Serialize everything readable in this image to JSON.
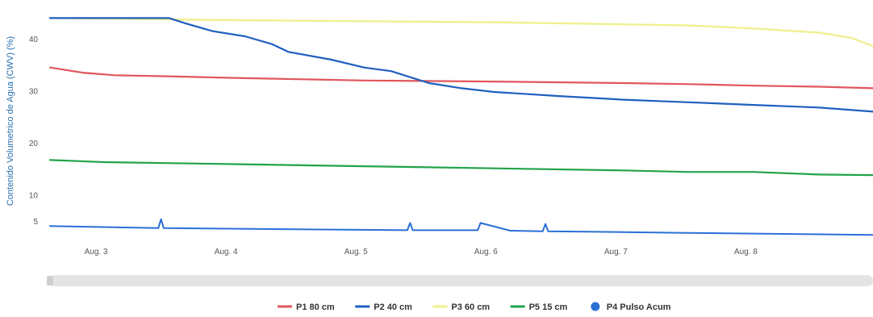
{
  "chart_data": {
    "type": "line",
    "title": "",
    "xlabel": "",
    "ylabel": "Contenido Volumetrico de Agua (CWV) (%)",
    "xlim": [
      "2023-08-02T14:00",
      "2023-08-08T22:00"
    ],
    "ylim": [
      0,
      45
    ],
    "y_ticks": [
      5,
      10,
      20,
      30,
      40
    ],
    "y_tick_labels": [
      "5",
      "10",
      "20",
      "30",
      "40"
    ],
    "x_ticks": [
      "2023-08-03T00:00",
      "2023-08-04T00:00",
      "2023-08-05T00:00",
      "2023-08-06T00:00",
      "2023-08-07T00:00",
      "2023-08-08T00:00"
    ],
    "x_tick_labels": [
      "Aug. 3",
      "Aug. 4",
      "Aug. 5",
      "Aug. 6",
      "Aug. 7",
      "Aug. 8"
    ],
    "grid": false,
    "legend_position": "bottom",
    "series": [
      {
        "name": "P1 80 cm",
        "color": "#e0565b",
        "x": [
          "2023-08-02T14:00",
          "2023-08-02T20:00",
          "2023-08-03T02:00",
          "2023-08-03T12:00",
          "2023-08-04T00:00",
          "2023-08-05T00:00",
          "2023-08-06T00:00",
          "2023-08-07T00:00",
          "2023-08-07T12:00",
          "2023-08-08T00:00",
          "2023-08-08T12:00",
          "2023-08-08T22:00"
        ],
        "values": [
          34.5,
          33.5,
          33.0,
          32.8,
          32.5,
          32.0,
          31.8,
          31.5,
          31.3,
          31.0,
          30.8,
          30.5
        ]
      },
      {
        "name": "P2 40 cm",
        "color": "#1f5fbf",
        "x": [
          "2023-08-02T14:00",
          "2023-08-03T12:00",
          "2023-08-03T15:00",
          "2023-08-03T20:00",
          "2023-08-04T02:00",
          "2023-08-04T07:00",
          "2023-08-04T10:00",
          "2023-08-04T18:00",
          "2023-08-05T00:00",
          "2023-08-05T05:00",
          "2023-08-05T08:00",
          "2023-08-05T12:00",
          "2023-08-05T18:00",
          "2023-08-06T00:00",
          "2023-08-06T12:00",
          "2023-08-07T00:00",
          "2023-08-07T12:00",
          "2023-08-08T00:00",
          "2023-08-08T12:00",
          "2023-08-08T22:00"
        ],
        "values": [
          44.0,
          44.0,
          43.0,
          41.5,
          40.5,
          39.0,
          37.5,
          36.0,
          34.5,
          33.8,
          32.8,
          31.5,
          30.5,
          29.8,
          29.0,
          28.3,
          27.8,
          27.3,
          26.8,
          26.0
        ]
      },
      {
        "name": "P3 60 cm",
        "color": "#eef08a",
        "x": [
          "2023-08-02T14:00",
          "2023-08-04T00:00",
          "2023-08-05T00:00",
          "2023-08-06T00:00",
          "2023-08-07T00:00",
          "2023-08-07T12:00",
          "2023-08-08T00:00",
          "2023-08-08T12:00",
          "2023-08-08T18:00",
          "2023-08-08T22:00"
        ],
        "values": [
          44.0,
          43.6,
          43.4,
          43.2,
          42.8,
          42.6,
          42.0,
          41.2,
          40.2,
          38.6
        ]
      },
      {
        "name": "P5 15 cm",
        "color": "#22a34a",
        "x": [
          "2023-08-02T14:00",
          "2023-08-03T00:00",
          "2023-08-04T00:00",
          "2023-08-05T00:00",
          "2023-08-06T00:00",
          "2023-08-07T00:00",
          "2023-08-07T12:00",
          "2023-08-08T00:00",
          "2023-08-08T12:00",
          "2023-08-08T22:00"
        ],
        "values": [
          16.7,
          16.3,
          15.9,
          15.5,
          15.1,
          14.7,
          14.4,
          14.4,
          13.9,
          13.8
        ]
      },
      {
        "name": "P4 Pulso Acum",
        "color": "#2a6fd6",
        "marker": "circle",
        "x": [
          "2023-08-02T14:00",
          "2023-08-03T10:00",
          "2023-08-03T10:30",
          "2023-08-03T11:00",
          "2023-08-05T08:00",
          "2023-08-05T08:30",
          "2023-08-05T09:00",
          "2023-08-05T21:00",
          "2023-08-05T21:30",
          "2023-08-06T03:00",
          "2023-08-06T09:00",
          "2023-08-06T09:30",
          "2023-08-06T10:00",
          "2023-08-07T10:00",
          "2023-08-08T22:00"
        ],
        "values": [
          4.0,
          3.6,
          5.3,
          3.6,
          3.2,
          4.6,
          3.2,
          3.2,
          4.6,
          3.1,
          3.0,
          4.4,
          3.0,
          2.7,
          2.3
        ]
      }
    ],
    "navigator": {
      "label": ""
    }
  }
}
